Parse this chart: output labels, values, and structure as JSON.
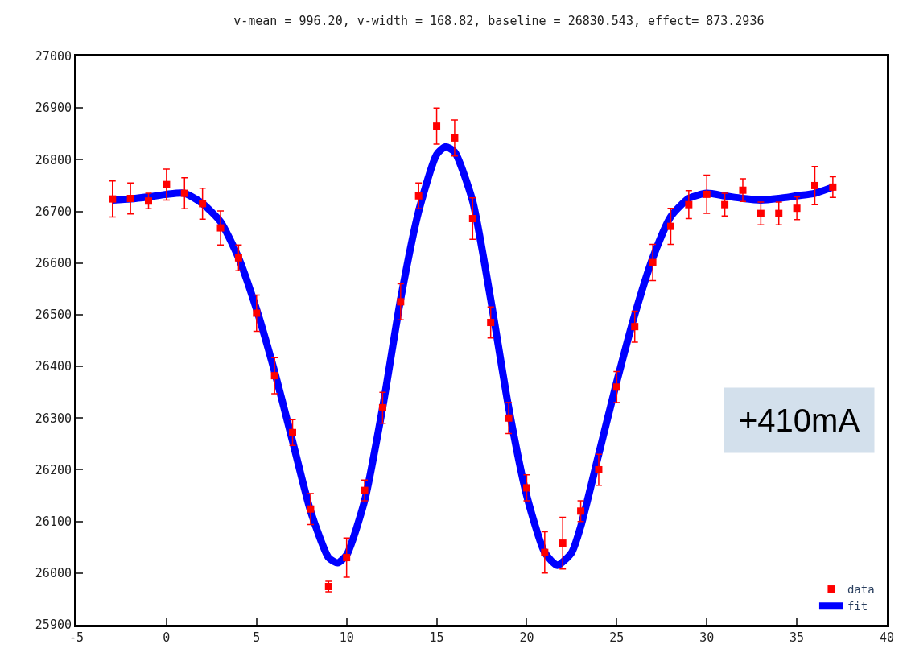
{
  "chart_data": {
    "type": "scatter",
    "title": "v-mean = 996.20, v-width = 168.82, baseline = 26830.543, effect= 873.2936",
    "xlim": [
      -5,
      40
    ],
    "xticks": [
      -5,
      0,
      5,
      10,
      15,
      20,
      25,
      30,
      35,
      40
    ],
    "ylim": [
      25900,
      27000
    ],
    "yticks": [
      25900,
      26000,
      26100,
      26200,
      26300,
      26400,
      26500,
      26600,
      26700,
      26800,
      26900,
      27000
    ],
    "legend": "bottom right",
    "annotations": [
      "+410mA"
    ],
    "series": [
      {
        "name": "data",
        "marker": "square",
        "color": "#ff0000",
        "x": [
          -3,
          -2,
          -1,
          0,
          1,
          2,
          3,
          4,
          5,
          6,
          7,
          8,
          9,
          10,
          11,
          12,
          13,
          14,
          15,
          16,
          17,
          18,
          19,
          20,
          21,
          22,
          23,
          24,
          25,
          26,
          27,
          28,
          29,
          30,
          31,
          32,
          33,
          34,
          35,
          36,
          37
        ],
        "values": [
          26724,
          26725,
          26720,
          26752,
          26735,
          26715,
          26668,
          26610,
          26503,
          26382,
          26272,
          26124,
          25974,
          26030,
          26160,
          26320,
          26525,
          26730,
          26865,
          26842,
          26686,
          26485,
          26300,
          26165,
          26040,
          26058,
          26120,
          26200,
          26360,
          26477,
          26601,
          26671,
          26713,
          26733,
          26713,
          26741,
          26696,
          26696,
          26706,
          26750,
          26747
        ],
        "errors": [
          35,
          30,
          15,
          30,
          30,
          30,
          33,
          25,
          35,
          35,
          25,
          30,
          10,
          38,
          20,
          30,
          35,
          25,
          35,
          35,
          40,
          30,
          30,
          25,
          40,
          50,
          20,
          30,
          30,
          30,
          35,
          35,
          27,
          37,
          22,
          22,
          22,
          22,
          22,
          37,
          20
        ]
      },
      {
        "name": "fit",
        "type": "line",
        "marker": "none",
        "line_style": "solid",
        "color": "#0000ff",
        "x": [
          -3,
          -2,
          -1,
          0,
          1,
          2,
          3,
          4,
          5,
          6,
          7,
          8,
          9,
          9.5,
          10,
          11,
          12,
          13,
          14,
          15,
          15.5,
          16,
          17,
          18,
          19,
          20,
          21,
          21.7,
          22.5,
          23,
          24,
          25,
          26,
          27,
          28,
          29,
          30,
          31,
          32,
          33,
          34,
          35,
          36,
          37
        ],
        "values": [
          26722,
          26724,
          26728,
          26733,
          26735,
          26715,
          26680,
          26610,
          26510,
          26390,
          26255,
          26120,
          26030,
          26020,
          26035,
          26140,
          26320,
          26530,
          26700,
          26810,
          26825,
          26815,
          26720,
          26530,
          26320,
          26150,
          26040,
          26015,
          26040,
          26090,
          26230,
          26370,
          26500,
          26610,
          26690,
          26725,
          26735,
          26730,
          26725,
          26722,
          26725,
          26730,
          26735,
          26747
        ]
      }
    ]
  }
}
